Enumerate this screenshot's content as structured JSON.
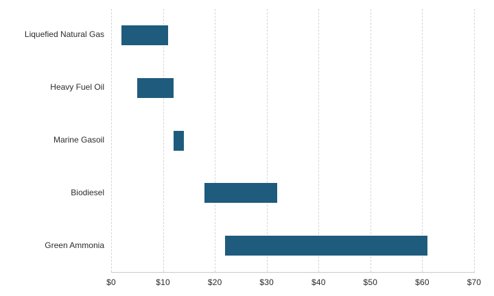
{
  "chart_data": {
    "type": "bar",
    "subtype": "range",
    "orientation": "horizontal",
    "title": "",
    "xlabel": "",
    "ylabel": "",
    "categories": [
      "Liquefied Natural Gas",
      "Heavy Fuel Oil",
      "Marine Gasoil",
      "Biodiesel",
      "Green Ammonia"
    ],
    "series": [
      {
        "name": "cost-range-usd",
        "ranges": [
          [
            2,
            11
          ],
          [
            5,
            12
          ],
          [
            12,
            14
          ],
          [
            18,
            32
          ],
          [
            22,
            61
          ]
        ]
      }
    ],
    "xlim": [
      0,
      70
    ],
    "x_tick_values": [
      0,
      10,
      20,
      30,
      40,
      50,
      60,
      70
    ],
    "x_tick_labels": [
      "$0",
      "$10",
      "$20",
      "$30",
      "$40",
      "$50",
      "$60",
      "$70"
    ],
    "grid": "vertical-dashed",
    "legend": "none",
    "bar_color": "#1f5b7d",
    "gridline_color": "#d4d4d4",
    "axis_line_color": "#c9c9c9",
    "label_color": "#2b2b2b"
  }
}
